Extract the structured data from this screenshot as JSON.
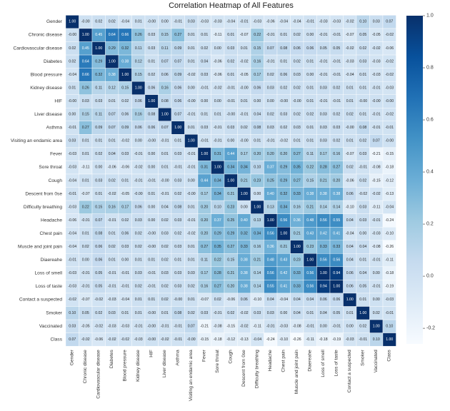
{
  "chart_data": {
    "type": "heatmap",
    "title": "Correlation Heatmap of All Features",
    "colormap": "Blues",
    "vmin": -0.26,
    "vmax": 1.0,
    "colorbar_ticks": [
      "1.0",
      "0.8",
      "0.6",
      "0.4",
      "0.2",
      "0.0",
      "-0.2"
    ],
    "colorbar_tick_values": [
      1.0,
      0.8,
      0.6,
      0.4,
      0.2,
      0.0,
      -0.2
    ],
    "legend_placement": "right",
    "labels": [
      "Gender",
      "Chronic disease",
      "Cardiovascular disease",
      "Diabetes",
      "Blood pressure",
      "Kidney disease",
      "HIF",
      "Liver disease",
      "Asthma",
      "Visiting an endamic area",
      "Fever",
      "Sore throat",
      "Cough",
      "Descent from 0se",
      "Difficulty breathing",
      "Headache",
      "Chest pain",
      "Muscle and joint pain",
      "Diaereahe",
      "Loss of smell",
      "Loss of taste",
      "Contact a suspected",
      "Smoker",
      "Vaccinated",
      "Class"
    ],
    "matrix": [
      [
        "1.00",
        "-0.00",
        "0.02",
        "0.02",
        "-0.04",
        "0.01",
        "-0.00",
        "0.00",
        "-0.01",
        "0.03",
        "-0.03",
        "-0.03",
        "-0.04",
        "-0.01",
        "-0.03",
        "-0.06",
        "-0.04",
        "-0.04",
        "-0.01",
        "-0.03",
        "-0.03",
        "-0.02",
        "0.10",
        "0.03",
        "0.07"
      ],
      [
        "-0.00",
        "1.00",
        "0.45",
        "0.64",
        "0.66",
        "0.26",
        "0.03",
        "0.15",
        "0.27",
        "0.01",
        "0.01",
        "-0.11",
        "0.01",
        "-0.07",
        "0.22",
        "-0.01",
        "0.01",
        "0.02",
        "0.00",
        "-0.01",
        "-0.01",
        "-0.07",
        "0.05",
        "-0.05",
        "-0.02"
      ],
      [
        "0.02",
        "0.45",
        "1.00",
        "0.29",
        "0.32",
        "0.11",
        "0.03",
        "0.11",
        "0.09",
        "0.01",
        "0.02",
        "0.00",
        "0.03",
        "0.01",
        "0.15",
        "0.07",
        "0.08",
        "0.06",
        "0.06",
        "0.05",
        "0.05",
        "-0.02",
        "0.02",
        "-0.02",
        "-0.06"
      ],
      [
        "0.02",
        "0.64",
        "0.29",
        "1.00",
        "0.38",
        "0.12",
        "0.01",
        "0.07",
        "0.07",
        "0.01",
        "0.04",
        "-0.06",
        "0.02",
        "-0.02",
        "0.16",
        "-0.01",
        "0.01",
        "0.02",
        "0.01",
        "-0.01",
        "-0.01",
        "-0.03",
        "0.03",
        "-0.03",
        "-0.02"
      ],
      [
        "-0.04",
        "0.66",
        "0.32",
        "0.38",
        "1.00",
        "0.15",
        "0.02",
        "0.06",
        "0.09",
        "-0.02",
        "0.03",
        "-0.06",
        "0.01",
        "-0.05",
        "0.17",
        "0.02",
        "0.06",
        "0.03",
        "0.00",
        "-0.01",
        "-0.01",
        "-0.04",
        "0.01",
        "-0.03",
        "-0.02"
      ],
      [
        "0.01",
        "0.26",
        "0.11",
        "0.12",
        "0.15",
        "1.00",
        "0.06",
        "0.16",
        "0.06",
        "0.00",
        "-0.01",
        "-0.02",
        "-0.01",
        "-0.00",
        "0.06",
        "0.03",
        "0.02",
        "0.02",
        "0.01",
        "0.03",
        "0.02",
        "0.01",
        "0.01",
        "-0.01",
        "-0.03"
      ],
      [
        "-0.00",
        "0.03",
        "0.03",
        "0.01",
        "0.02",
        "0.06",
        "1.00",
        "0.08",
        "0.06",
        "-0.00",
        "0.00",
        "0.00",
        "-0.01",
        "0.01",
        "0.00",
        "0.00",
        "-0.00",
        "-0.00",
        "0.01",
        "-0.01",
        "-0.01",
        "0.01",
        "-0.00",
        "-0.00",
        "-0.00"
      ],
      [
        "0.00",
        "0.15",
        "0.11",
        "0.07",
        "0.06",
        "0.16",
        "0.08",
        "1.00",
        "0.07",
        "-0.01",
        "0.01",
        "0.01",
        "-0.00",
        "-0.01",
        "0.04",
        "0.02",
        "0.03",
        "0.02",
        "0.02",
        "0.03",
        "0.02",
        "0.02",
        "0.01",
        "-0.01",
        "-0.02"
      ],
      [
        "-0.01",
        "0.27",
        "0.09",
        "0.07",
        "0.09",
        "0.06",
        "0.06",
        "0.07",
        "1.00",
        "0.01",
        "0.03",
        "-0.01",
        "0.03",
        "0.02",
        "0.08",
        "0.03",
        "0.02",
        "0.03",
        "0.01",
        "0.03",
        "0.03",
        "-0.00",
        "0.08",
        "-0.01",
        "-0.01"
      ],
      [
        "0.03",
        "0.01",
        "0.01",
        "0.01",
        "-0.02",
        "0.00",
        "-0.00",
        "-0.01",
        "0.01",
        "1.00",
        "-0.01",
        "-0.01",
        "0.00",
        "-0.00",
        "0.01",
        "-0.01",
        "-0.02",
        "0.01",
        "0.01",
        "0.03",
        "0.02",
        "0.01",
        "0.02",
        "0.07",
        "-0.00"
      ],
      [
        "-0.03",
        "0.01",
        "0.02",
        "0.04",
        "0.03",
        "-0.01",
        "0.00",
        "0.01",
        "0.03",
        "-0.01",
        "1.00",
        "0.31",
        "0.44",
        "0.17",
        "0.20",
        "0.20",
        "0.20",
        "0.27",
        "0.11",
        "0.17",
        "0.16",
        "-0.07",
        "0.03",
        "-0.21",
        "-0.15"
      ],
      [
        "-0.03",
        "-0.11",
        "0.00",
        "-0.06",
        "-0.06",
        "-0.02",
        "0.00",
        "0.01",
        "-0.01",
        "-0.01",
        "0.31",
        "1.00",
        "0.34",
        "0.34",
        "0.10",
        "0.37",
        "0.29",
        "0.35",
        "0.22",
        "0.28",
        "0.27",
        "0.02",
        "-0.01",
        "-0.08",
        "-0.18"
      ],
      [
        "-0.04",
        "0.01",
        "0.03",
        "0.02",
        "0.01",
        "-0.01",
        "-0.01",
        "-0.00",
        "0.03",
        "0.00",
        "0.44",
        "0.34",
        "1.00",
        "0.21",
        "0.23",
        "0.25",
        "0.29",
        "0.27",
        "0.15",
        "0.21",
        "0.20",
        "-0.06",
        "0.02",
        "-0.15",
        "-0.12"
      ],
      [
        "-0.01",
        "-0.07",
        "0.01",
        "-0.02",
        "-0.05",
        "-0.00",
        "0.01",
        "-0.01",
        "0.02",
        "-0.00",
        "0.17",
        "0.34",
        "0.21",
        "1.00",
        "0.00",
        "0.40",
        "0.32",
        "0.33",
        "0.38",
        "0.38",
        "0.38",
        "0.06",
        "-0.02",
        "-0.02",
        "-0.13"
      ],
      [
        "-0.03",
        "0.22",
        "0.15",
        "0.16",
        "0.17",
        "0.06",
        "0.00",
        "0.04",
        "0.08",
        "0.01",
        "0.20",
        "0.10",
        "0.23",
        "0.00",
        "1.00",
        "0.13",
        "0.34",
        "0.16",
        "0.21",
        "0.14",
        "0.14",
        "-0.10",
        "0.03",
        "-0.11",
        "-0.04"
      ],
      [
        "-0.06",
        "-0.01",
        "0.07",
        "-0.01",
        "0.02",
        "0.03",
        "0.00",
        "0.02",
        "0.03",
        "-0.01",
        "0.20",
        "0.37",
        "0.25",
        "0.40",
        "0.13",
        "1.00",
        "0.56",
        "0.36",
        "0.48",
        "0.56",
        "0.55",
        "0.04",
        "0.03",
        "-0.01",
        "-0.24"
      ],
      [
        "-0.04",
        "0.01",
        "0.08",
        "0.01",
        "0.06",
        "0.02",
        "-0.00",
        "0.03",
        "0.02",
        "-0.02",
        "0.20",
        "0.29",
        "0.29",
        "0.32",
        "0.34",
        "0.56",
        "1.00",
        "0.21",
        "0.43",
        "0.42",
        "0.41",
        "-0.04",
        "0.00",
        "-0.03",
        "-0.10"
      ],
      [
        "-0.04",
        "0.02",
        "0.06",
        "0.02",
        "0.03",
        "0.02",
        "-0.00",
        "0.02",
        "0.03",
        "0.01",
        "0.27",
        "0.35",
        "0.27",
        "0.33",
        "0.16",
        "0.36",
        "0.21",
        "1.00",
        "0.23",
        "0.33",
        "0.33",
        "0.04",
        "0.04",
        "-0.08",
        "-0.26"
      ],
      [
        "-0.01",
        "0.00",
        "0.06",
        "0.01",
        "0.00",
        "0.01",
        "0.01",
        "0.02",
        "0.01",
        "0.01",
        "0.11",
        "0.22",
        "0.15",
        "0.38",
        "0.21",
        "0.48",
        "0.43",
        "0.23",
        "1.00",
        "0.56",
        "0.56",
        "0.04",
        "0.01",
        "-0.01",
        "-0.11"
      ],
      [
        "-0.03",
        "-0.01",
        "0.05",
        "-0.01",
        "-0.01",
        "0.03",
        "-0.01",
        "0.03",
        "0.03",
        "0.03",
        "0.17",
        "0.28",
        "0.21",
        "0.38",
        "0.14",
        "0.56",
        "0.42",
        "0.33",
        "0.56",
        "1.00",
        "0.94",
        "0.06",
        "0.04",
        "0.00",
        "-0.18"
      ],
      [
        "-0.03",
        "-0.01",
        "0.05",
        "-0.01",
        "-0.01",
        "0.02",
        "-0.01",
        "0.02",
        "0.03",
        "0.02",
        "0.16",
        "0.27",
        "0.20",
        "0.38",
        "0.14",
        "0.55",
        "0.41",
        "0.33",
        "0.56",
        "0.94",
        "1.00",
        "0.06",
        "0.05",
        "-0.01",
        "-0.19"
      ],
      [
        "-0.02",
        "-0.07",
        "-0.02",
        "-0.03",
        "-0.04",
        "0.01",
        "0.01",
        "0.02",
        "-0.00",
        "0.01",
        "-0.07",
        "0.02",
        "-0.06",
        "0.06",
        "-0.10",
        "0.04",
        "-0.04",
        "0.04",
        "0.04",
        "0.06",
        "0.06",
        "1.00",
        "0.01",
        "0.00",
        "-0.03"
      ],
      [
        "0.10",
        "0.05",
        "0.02",
        "0.03",
        "0.01",
        "0.01",
        "-0.00",
        "0.01",
        "0.08",
        "0.02",
        "0.03",
        "-0.01",
        "0.02",
        "-0.02",
        "0.03",
        "0.03",
        "0.00",
        "0.04",
        "0.01",
        "0.04",
        "0.05",
        "0.01",
        "1.00",
        "0.02",
        "-0.01"
      ],
      [
        "0.03",
        "-0.05",
        "-0.02",
        "-0.03",
        "-0.03",
        "-0.01",
        "-0.00",
        "-0.01",
        "-0.01",
        "0.07",
        "-0.21",
        "-0.08",
        "-0.15",
        "-0.02",
        "-0.11",
        "-0.01",
        "-0.03",
        "-0.08",
        "-0.01",
        "0.00",
        "-0.01",
        "0.00",
        "0.02",
        "1.00",
        "0.10"
      ],
      [
        "0.07",
        "-0.02",
        "-0.06",
        "-0.02",
        "-0.02",
        "-0.03",
        "-0.00",
        "-0.02",
        "-0.01",
        "-0.00",
        "-0.15",
        "-0.18",
        "-0.12",
        "-0.13",
        "-0.04",
        "-0.24",
        "-0.10",
        "-0.26",
        "-0.11",
        "-0.18",
        "-0.19",
        "-0.03",
        "-0.01",
        "0.10",
        "1.00"
      ]
    ]
  }
}
